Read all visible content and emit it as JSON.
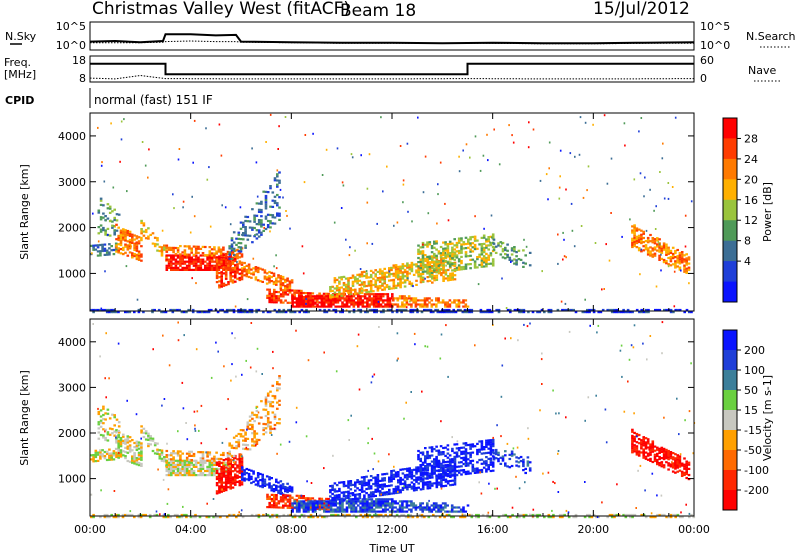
{
  "header": {
    "station": "Christmas Valley West (fitACF)",
    "beam": "Beam 18",
    "date": "15/Jul/2012",
    "cpid_label": "CPID",
    "cpid_value": "normal (fast) 151 IF"
  },
  "colors": {
    "power": [
      "#0a14ff",
      "#1f3fd8",
      "#3c6e95",
      "#4f9a58",
      "#9ac43c",
      "#ffb000",
      "#ff7a00",
      "#ff3c00",
      "#ff0000"
    ],
    "velocity": [
      "#0a14ff",
      "#1f3fd8",
      "#3c7f9a",
      "#6ad040",
      "#c8c8c0",
      "#ffa000",
      "#ff6a00",
      "#ff2800",
      "#ff0000"
    ]
  },
  "chart_data": [
    {
      "type": "line",
      "panel": "noise",
      "left_label": "N.Sky",
      "right_label": "N.Search",
      "ytick_labels": [
        "10^5",
        "10^0"
      ],
      "ytick_labels_right": [
        "10^5",
        "10^0"
      ],
      "x": [
        0,
        1,
        2,
        2.9,
        3,
        4,
        5,
        5.8,
        6,
        8,
        10,
        12,
        14,
        16,
        18,
        20,
        22,
        24
      ],
      "series": [
        {
          "values": [
            1.5,
            1.6,
            1.4,
            1.6,
            2.8,
            2.8,
            2.6,
            2.7,
            1.5,
            1.4,
            1.3,
            1.3,
            1.2,
            1.3,
            1.2,
            1.2,
            1.3,
            1.4
          ]
        },
        {
          "values": [
            1.3,
            1.3,
            1.3,
            1.4,
            1.5,
            1.6,
            1.5,
            1.5,
            1.4,
            1.3,
            1.2,
            1.2,
            1.2,
            1.2,
            1.1,
            1.1,
            1.2,
            1.2
          ]
        }
      ],
      "ylim": [
        0,
        5
      ]
    },
    {
      "type": "line",
      "panel": "frequency",
      "left_label_lines": [
        "Freq.",
        "[MHz]"
      ],
      "right_label": "Nave",
      "ytick_labels": [
        "18",
        "8"
      ],
      "ytick_labels_right": [
        "60",
        "0"
      ],
      "freq_steps": [
        [
          0,
          15
        ],
        [
          3,
          11
        ],
        [
          15,
          15
        ],
        [
          24,
          15
        ]
      ],
      "nave_x": [
        0,
        1,
        2,
        3,
        6,
        9,
        12,
        15,
        18,
        21,
        24
      ],
      "nave_values": [
        9.5,
        9.2,
        10.5,
        9.3,
        9.2,
        9.2,
        9.2,
        9.3,
        9.2,
        9.2,
        9.3
      ],
      "ylim": [
        8,
        18
      ]
    },
    {
      "type": "heatmap",
      "panel": "power",
      "ylabel": "Slant Range [km]",
      "yticks": [
        1000,
        2000,
        3000,
        4000
      ],
      "ylim": [
        180,
        4500
      ],
      "xlim": [
        0,
        24
      ],
      "colorbar": {
        "label": "Power [dB]",
        "ticks": [
          4,
          8,
          12,
          16,
          20,
          24,
          28
        ],
        "range": [
          0,
          30
        ]
      }
    },
    {
      "type": "heatmap",
      "panel": "velocity",
      "ylabel": "Slant Range [km]",
      "yticks": [
        1000,
        2000,
        3000,
        4000
      ],
      "ylim": [
        180,
        4500
      ],
      "xlim": [
        0,
        24
      ],
      "xtick_labels": [
        "00:00",
        "04:00",
        "08:00",
        "12:00",
        "16:00",
        "20:00",
        "00:00"
      ],
      "xtick_hours": [
        0,
        4,
        8,
        12,
        16,
        20,
        24
      ],
      "xlabel": "Time UT",
      "colorbar": {
        "label": "Velocity [m s-1]",
        "ticks": [
          200,
          100,
          50,
          15,
          -15,
          -50,
          -100,
          -200
        ]
      }
    }
  ]
}
